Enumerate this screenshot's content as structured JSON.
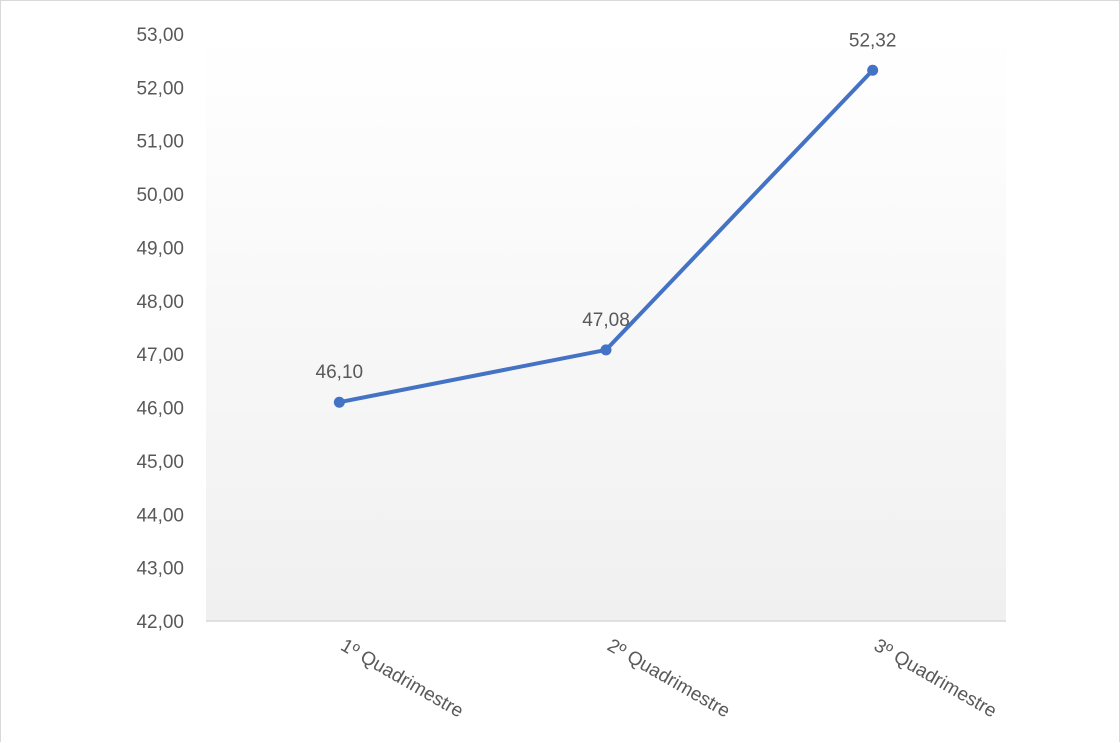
{
  "chart_data": {
    "type": "line",
    "title": "",
    "xlabel": "",
    "ylabel": "",
    "categories": [
      "1º Quadrimestre",
      "2º Quadrimestre",
      "3º Quadrimestre"
    ],
    "series": [
      {
        "values": [
          46.1,
          47.08,
          52.32
        ],
        "data_labels": [
          "46,10",
          "47,08",
          "52,32"
        ],
        "color": "#4472C4"
      }
    ],
    "ylim": [
      42,
      53
    ],
    "yticks": [
      42,
      43,
      44,
      45,
      46,
      47,
      48,
      49,
      50,
      51,
      52,
      53
    ],
    "ytick_labels": [
      "42,00",
      "43,00",
      "44,00",
      "45,00",
      "46,00",
      "47,00",
      "48,00",
      "49,00",
      "50,00",
      "51,00",
      "52,00",
      "53,00"
    ],
    "grid": false,
    "legend": "none",
    "plot_background": "gradient white to light gray",
    "axis_line_color": "#d9d9d9"
  }
}
